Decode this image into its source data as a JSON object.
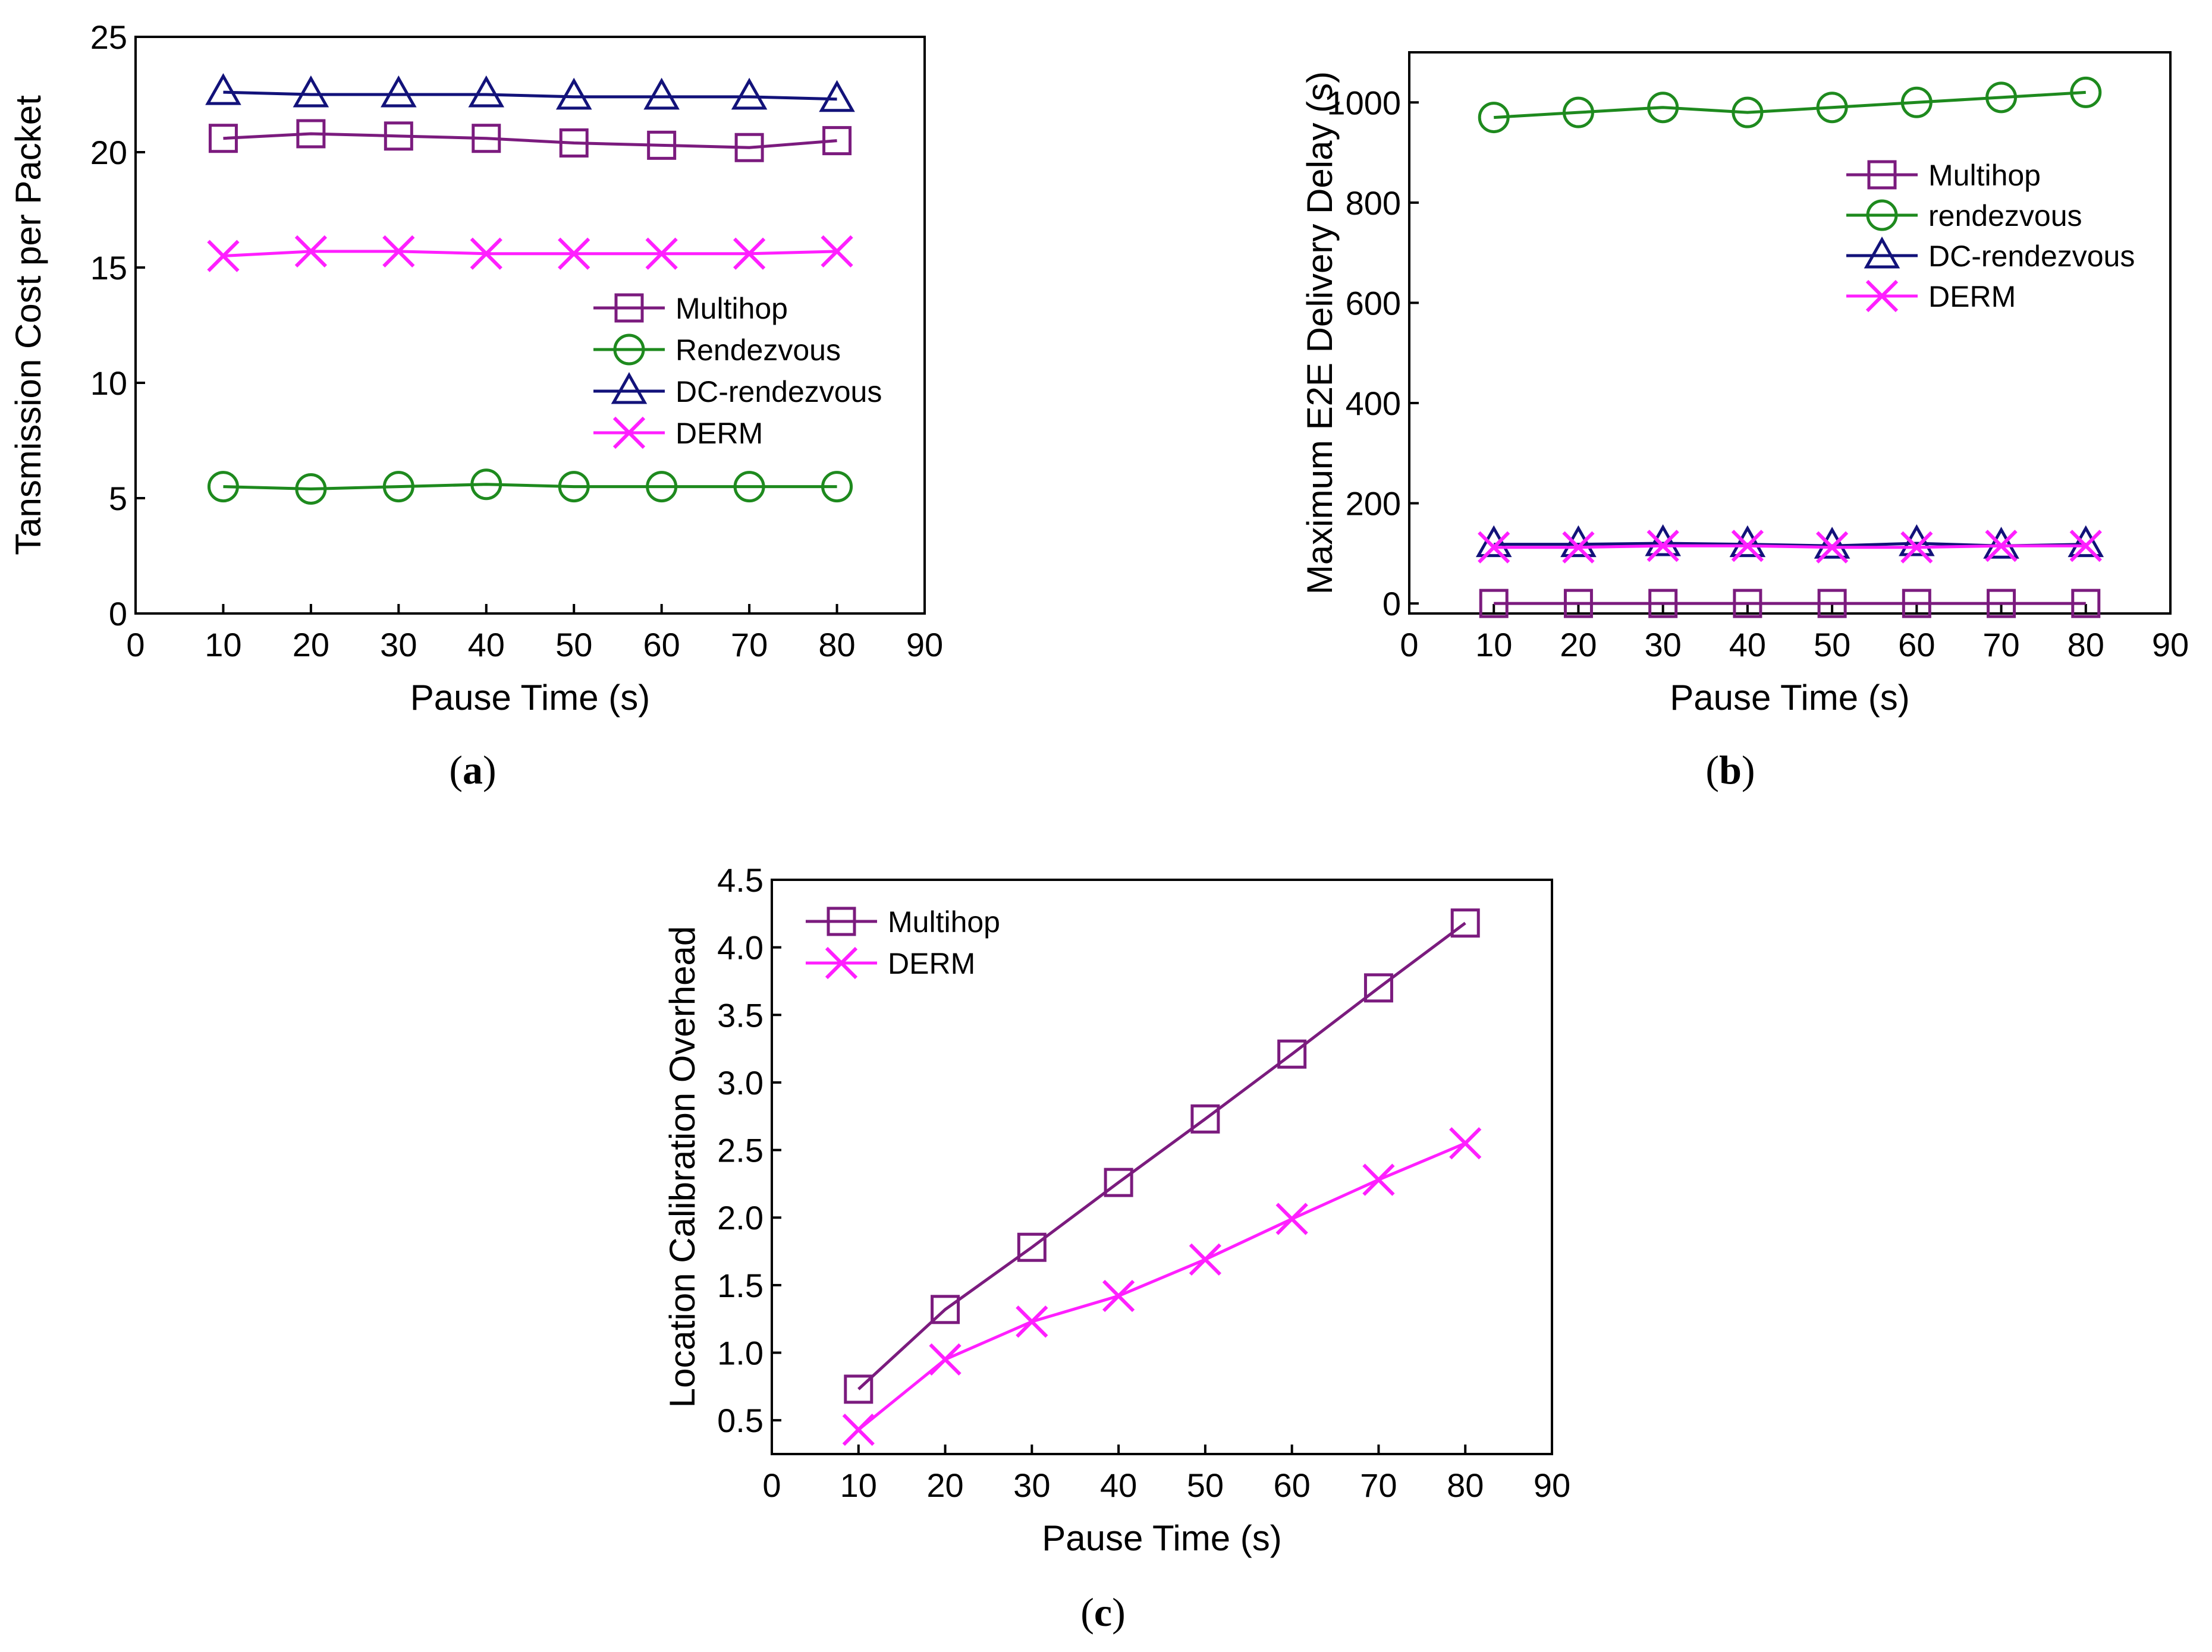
{
  "chart_data": [
    {
      "type": "line",
      "caption": [
        "(",
        "a",
        ")"
      ],
      "xlabel": "Pause Time (s)",
      "ylabel": "Tansmission Cost per Packet",
      "xlim": [
        0,
        90
      ],
      "ylim": [
        0,
        25
      ],
      "xticks": [
        0,
        10,
        20,
        30,
        40,
        50,
        60,
        70,
        80,
        90
      ],
      "yticks": [
        0,
        5,
        10,
        15,
        20,
        25
      ],
      "legend_position": "right-middle",
      "x": [
        10,
        20,
        30,
        40,
        50,
        60,
        70,
        80
      ],
      "series": [
        {
          "name": "Multihop",
          "marker": "square",
          "color": "#7B1B7E",
          "values": [
            20.6,
            20.8,
            20.7,
            20.6,
            20.4,
            20.3,
            20.2,
            20.5
          ]
        },
        {
          "name": "Rendezvous",
          "marker": "circle",
          "color": "#1E8A1E",
          "values": [
            5.5,
            5.4,
            5.5,
            5.6,
            5.5,
            5.5,
            5.5,
            5.5
          ]
        },
        {
          "name": "DC-rendezvous",
          "marker": "triangle",
          "color": "#12127A",
          "values": [
            22.6,
            22.5,
            22.5,
            22.5,
            22.4,
            22.4,
            22.4,
            22.3
          ]
        },
        {
          "name": "DERM",
          "marker": "x",
          "color": "#FF1FFF",
          "values": [
            15.5,
            15.7,
            15.7,
            15.6,
            15.6,
            15.6,
            15.6,
            15.7
          ]
        }
      ]
    },
    {
      "type": "line",
      "caption": [
        "(",
        "b",
        ")"
      ],
      "xlabel": "Pause Time (s)",
      "ylabel": "Maximum E2E Delivery Delay (s)",
      "xlim": [
        0,
        90
      ],
      "ylim": [
        -20,
        1100
      ],
      "xticks": [
        0,
        10,
        20,
        30,
        40,
        50,
        60,
        70,
        80,
        90
      ],
      "yticks": [
        0,
        200,
        400,
        600,
        800,
        1000
      ],
      "legend_position": "top-right",
      "x": [
        10,
        20,
        30,
        40,
        50,
        60,
        70,
        80
      ],
      "series": [
        {
          "name": "Multihop",
          "marker": "square",
          "color": "#7B1B7E",
          "values": [
            0,
            0,
            0,
            0,
            0,
            0,
            0,
            0
          ]
        },
        {
          "name": "rendezvous",
          "marker": "circle",
          "color": "#1E8A1E",
          "values": [
            970,
            980,
            990,
            980,
            990,
            1000,
            1010,
            1020
          ]
        },
        {
          "name": "DC-rendezvous",
          "marker": "triangle",
          "color": "#12127A",
          "values": [
            118,
            118,
            120,
            118,
            115,
            120,
            115,
            118
          ]
        },
        {
          "name": "DERM",
          "marker": "x",
          "color": "#FF1FFF",
          "values": [
            112,
            112,
            115,
            115,
            112,
            112,
            115,
            115
          ]
        }
      ]
    },
    {
      "type": "line",
      "caption": [
        "(",
        "c",
        ")"
      ],
      "xlabel": "Pause Time (s)",
      "ylabel": "Location Calibration Overhead",
      "xlim": [
        0,
        90
      ],
      "ylim": [
        0.25,
        4.5
      ],
      "xticks": [
        0,
        10,
        20,
        30,
        40,
        50,
        60,
        70,
        80,
        90
      ],
      "yticks": [
        0.5,
        1.0,
        1.5,
        2.0,
        2.5,
        3.0,
        3.5,
        4.0,
        4.5
      ],
      "legend_position": "top-left",
      "x": [
        10,
        20,
        30,
        40,
        50,
        60,
        70,
        80
      ],
      "series": [
        {
          "name": "Multihop",
          "marker": "square",
          "color": "#7B1B7E",
          "values": [
            0.73,
            1.32,
            1.78,
            2.26,
            2.73,
            3.21,
            3.7,
            4.18
          ]
        },
        {
          "name": "DERM",
          "marker": "x",
          "color": "#FF1FFF",
          "values": [
            0.43,
            0.95,
            1.23,
            1.42,
            1.69,
            1.99,
            2.28,
            2.55
          ]
        }
      ]
    }
  ]
}
